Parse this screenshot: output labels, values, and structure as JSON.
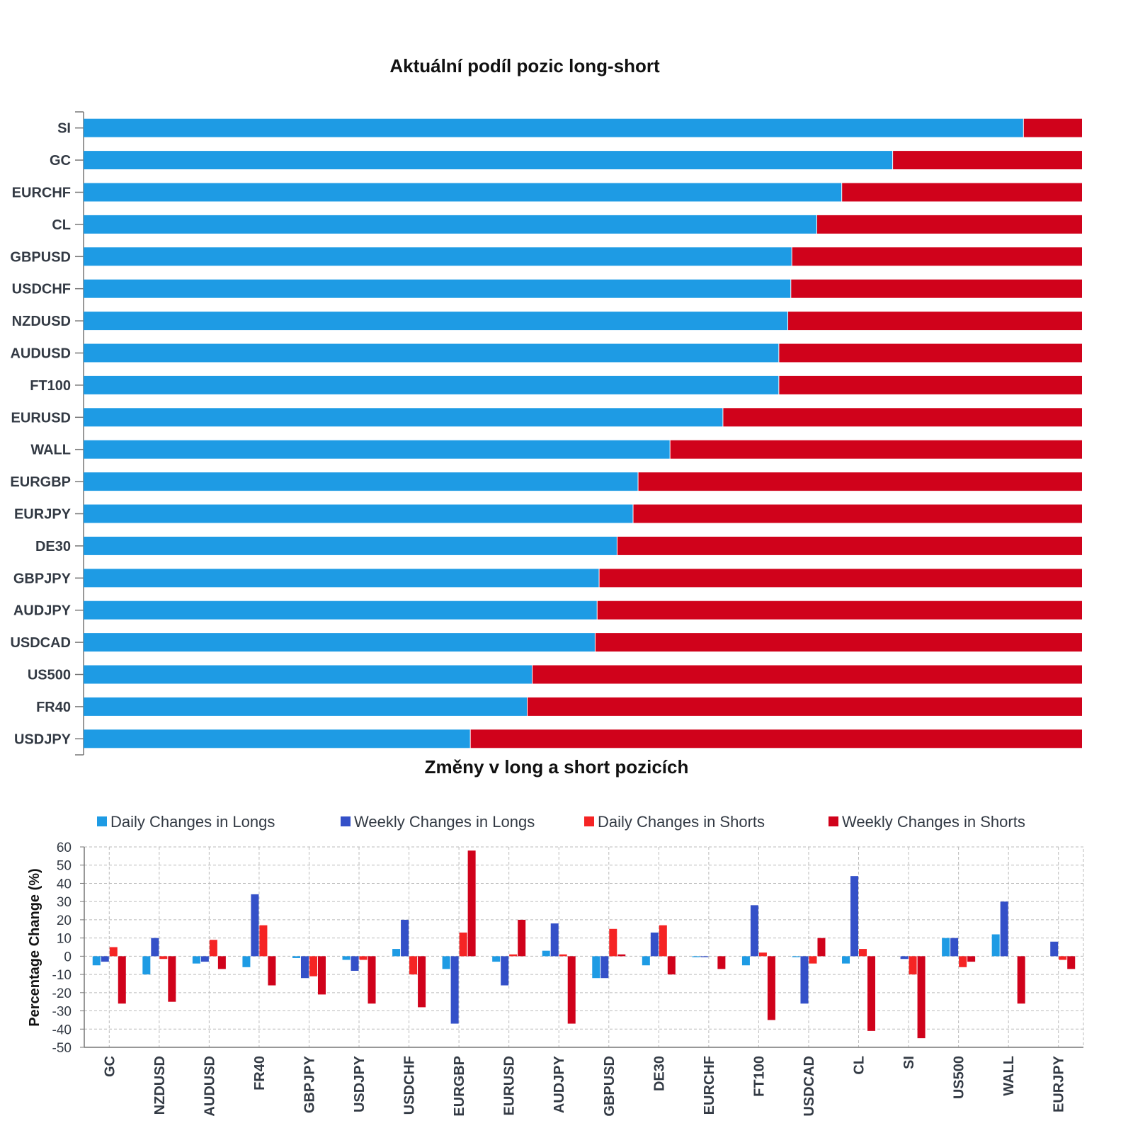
{
  "colors": {
    "long": "#1e9be4",
    "short": "#d0021b",
    "daily_longs": "#1e9be4",
    "weekly_longs": "#3450c8",
    "daily_shorts": "#f52424",
    "weekly_shorts": "#d0021b",
    "axis": "#777777",
    "grid": "#bbbbbb"
  },
  "chart_data": [
    {
      "type": "bar",
      "orientation": "horizontal",
      "stacked": true,
      "title": "Aktuální podíl pozic long-short",
      "categories": [
        "SI",
        "GC",
        "EURCHF",
        "CL",
        "GBPUSD",
        "USDCHF",
        "NZDUSD",
        "AUDUSD",
        "FT100",
        "EURUSD",
        "WALL",
        "EURGBP",
        "EURJPY",
        "DE30",
        "GBPJPY",
        "AUDJPY",
        "USDCAD",
        "US500",
        "FR40",
        "USDJPY"
      ],
      "series": [
        {
          "values": [
            94.1,
            81.0,
            75.9,
            73.4,
            70.9,
            70.8,
            70.5,
            69.6,
            69.6,
            64.0,
            58.7,
            55.5,
            55.0,
            53.4,
            51.6,
            51.4,
            51.2,
            44.9,
            44.4,
            38.7
          ]
        },
        {
          "values": [
            5.9,
            19.0,
            24.1,
            26.6,
            29.1,
            29.2,
            29.5,
            30.4,
            30.4,
            36.0,
            41.3,
            44.5,
            45.0,
            46.6,
            48.4,
            48.6,
            48.8,
            55.1,
            55.6,
            61.3
          ]
        }
      ],
      "xlim": [
        0,
        100
      ],
      "grid": false,
      "legend": "none"
    },
    {
      "type": "bar",
      "title": "Změny v long a short pozicích",
      "ylabel": "Percentage Change (%)",
      "ylim": [
        -50,
        60
      ],
      "yticks": [
        60,
        50,
        40,
        30,
        20,
        10,
        0,
        -10,
        -20,
        -30,
        -40,
        -50
      ],
      "grid": true,
      "legend": "top",
      "categories": [
        "GC",
        "NZDUSD",
        "AUDUSD",
        "FR40",
        "GBPJPY",
        "USDJPY",
        "USDCHF",
        "EURGBP",
        "EURUSD",
        "AUDJPY",
        "GBPUSD",
        "DE30",
        "EURCHF",
        "FT100",
        "USDCAD",
        "CL",
        "SI",
        "US500",
        "WALL",
        "EURJPY"
      ],
      "series": [
        {
          "name": "Daily Changes in Longs",
          "values": [
            -5,
            -10,
            -4,
            -6,
            -1,
            -2,
            4,
            -7,
            -3,
            3,
            -12,
            -5,
            -0.5,
            -5,
            -0.5,
            -4,
            0,
            10,
            12,
            0
          ]
        },
        {
          "name": "Weekly Changes in Longs",
          "values": [
            -3,
            10,
            -3,
            34,
            -12,
            -8,
            20,
            -37,
            -16,
            18,
            -12,
            13,
            -0.5,
            28,
            -26,
            44,
            -1.5,
            10,
            30,
            8
          ]
        },
        {
          "name": "Daily Changes in Shorts",
          "values": [
            5,
            -1.5,
            9,
            17,
            -11,
            -2,
            -10,
            13,
            1,
            1,
            15,
            17,
            0,
            2,
            -4,
            4,
            -10,
            -6,
            0,
            -2
          ]
        },
        {
          "name": "Weekly Changes in Shorts",
          "values": [
            -26,
            -25,
            -7,
            -16,
            -21,
            -26,
            -28,
            58,
            20,
            -37,
            1,
            -10,
            -7,
            -35,
            10,
            -41,
            -45,
            -3,
            -26,
            -7
          ]
        }
      ]
    }
  ]
}
